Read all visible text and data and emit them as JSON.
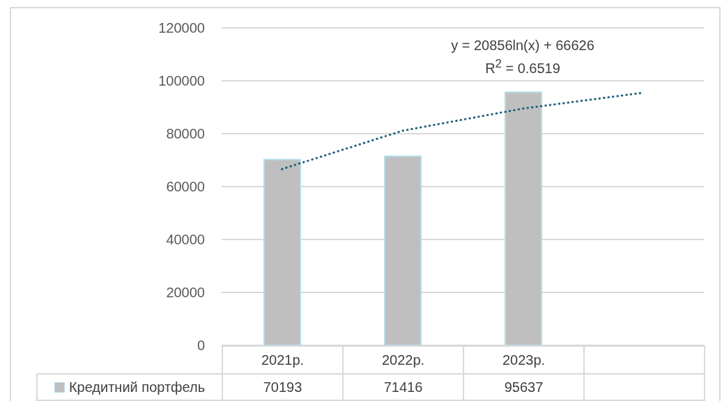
{
  "chart_data": {
    "type": "bar",
    "categories": [
      "2021р.",
      "2022р.",
      "2023р.",
      null
    ],
    "series": [
      {
        "name": "Кредитний портфель",
        "color": "#bfbfbf",
        "values": [
          70193,
          71416,
          95637,
          null
        ],
        "value_labels": [
          "70193",
          "71416",
          "95637",
          null
        ]
      },
      {
        "type": "line",
        "color": "#1f5f7a",
        "line_style": "dotted",
        "marker": "none",
        "values": [
          66600,
          81100,
          89500,
          95500
        ]
      }
    ],
    "ylim": [
      0,
      120000
    ],
    "yticks": [
      0,
      20000,
      40000,
      60000,
      80000,
      100000,
      120000
    ],
    "grid": "y",
    "legend": "bottom",
    "annotations": [
      "y = 20856ln(x) + 66626",
      "R$^{2}$ = 0.6519"
    ]
  }
}
